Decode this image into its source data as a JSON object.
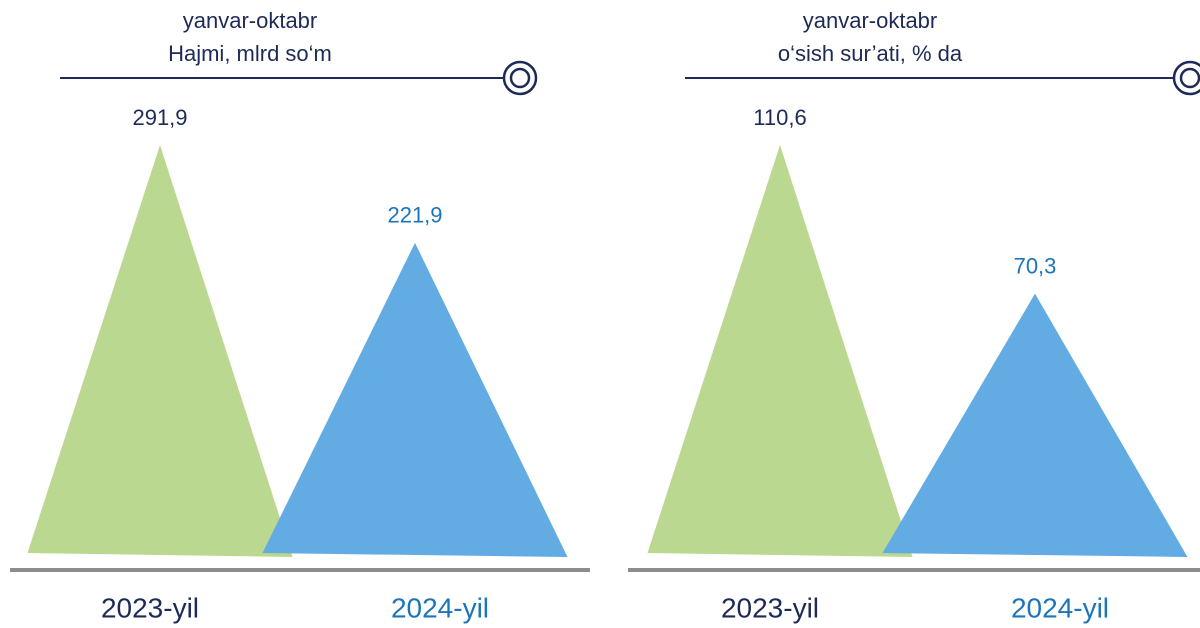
{
  "chart_data": [
    {
      "type": "triangle",
      "title": "yanvar-oktabr",
      "subtitle": "Hajmi, mlrd so‘m",
      "categories": [
        "2023-yil",
        "2024-yil"
      ],
      "values": [
        291.9,
        221.9
      ],
      "value_labels": [
        "291,9",
        "221,9"
      ],
      "colors": [
        "#bad88f",
        "#62abe3"
      ],
      "label_colors": [
        "#1d2a55",
        "#1c74ba"
      ]
    },
    {
      "type": "triangle",
      "title": "yanvar-oktabr",
      "subtitle": "o‘sish sur’ati, % da",
      "categories": [
        "2023-yil",
        "2024-yil"
      ],
      "values": [
        110.6,
        70.3
      ],
      "value_labels": [
        "110,6",
        "70,3"
      ],
      "colors": [
        "#bad88f",
        "#62abe3"
      ],
      "label_colors": [
        "#1d2a55",
        "#1c74ba"
      ]
    }
  ]
}
